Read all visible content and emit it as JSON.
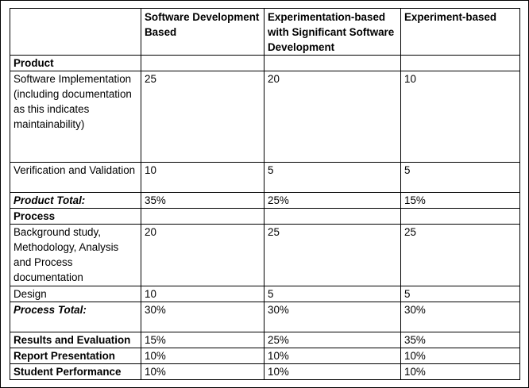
{
  "header": {
    "corner": "",
    "col1": "Software Development Based",
    "col2": "Experimentation-based with Significant Software Development",
    "col3": "Experiment-based"
  },
  "rows": [
    {
      "label": "Product",
      "v1": "",
      "v2": "",
      "v3": ""
    },
    {
      "label": "Software Implementation (including documentation as this indicates maintainability)",
      "v1": "25",
      "v2": "20",
      "v3": "10"
    },
    {
      "label": "Verification and Validation",
      "v1": "10",
      "v2": "5",
      "v3": "5"
    },
    {
      "label": "Product Total:",
      "v1": "35%",
      "v2": "25%",
      "v3": "15%"
    },
    {
      "label": "Process",
      "v1": "",
      "v2": "",
      "v3": ""
    },
    {
      "label": "Background study, Methodology, Analysis and Process documentation",
      "v1": "20",
      "v2": "25",
      "v3": "25"
    },
    {
      "label": "Design",
      "v1": "10",
      "v2": "5",
      "v3": "5"
    },
    {
      "label": "Process Total:",
      "v1": "30%",
      "v2": "30%",
      "v3": "30%"
    },
    {
      "label": "Results and Evaluation",
      "v1": "15%",
      "v2": "25%",
      "v3": "35%"
    },
    {
      "label": "Report Presentation",
      "v1": "10%",
      "v2": "10%",
      "v3": "10%"
    },
    {
      "label": "Student Performance",
      "v1": "10%",
      "v2": "10%",
      "v3": "10%"
    }
  ]
}
